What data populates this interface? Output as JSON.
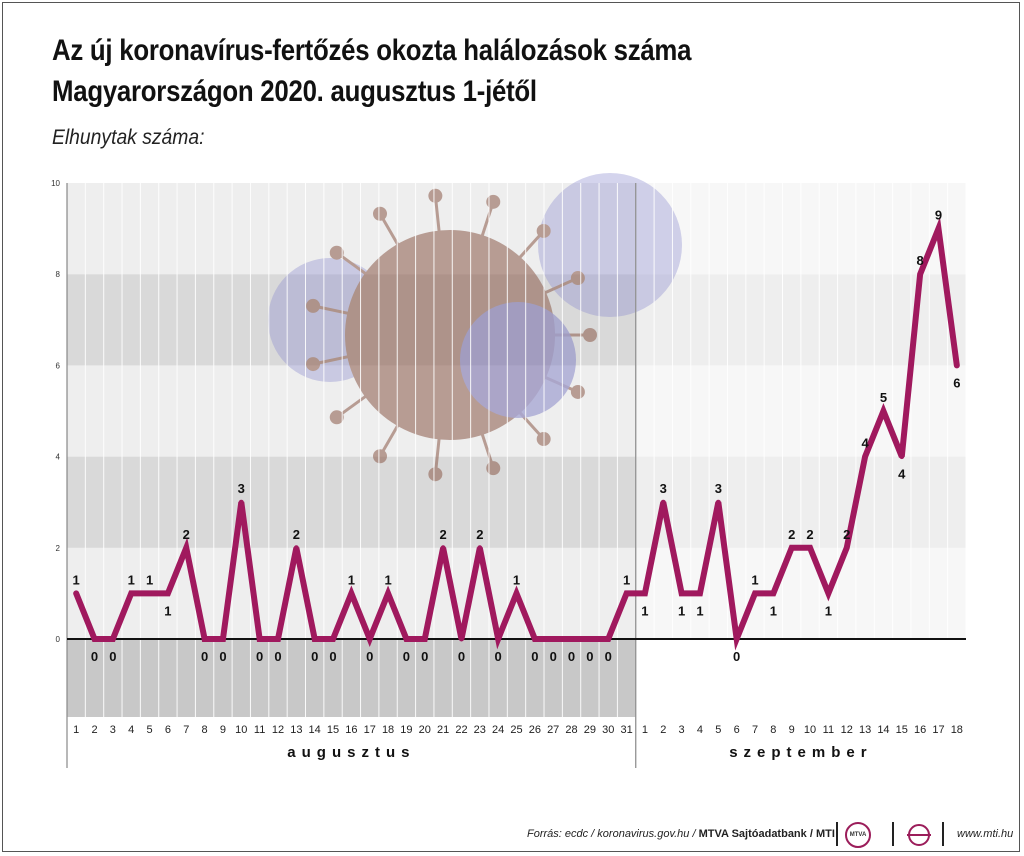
{
  "title_line1": "Az új koronavírus-fertőzés okozta halálozások száma",
  "title_line2": "Magyarországon 2020. augusztus 1-jétől",
  "y_axis_label": "Elhunytak száma:",
  "source": {
    "text": "Forrás: ecdc / koronavirus.gov.hu / ",
    "bold": "MTVA Sajtóadatbank / MTI",
    "url": "www.mti.hu",
    "logo_text": "MTVA"
  },
  "colors": {
    "line": "#a0195e",
    "band_dark": "#d9d9d9",
    "band_light": "#eeeeee",
    "lower_band": "#c8c8c8"
  },
  "chart_data": {
    "type": "line",
    "title": "Az új koronavírus-fertőzés okozta halálozások száma Magyarországon 2020. augusztus 1-jétől",
    "ylabel": "Elhunytak száma:",
    "ylim": [
      -2,
      10
    ],
    "yticks": [
      0,
      2,
      4,
      6,
      8,
      10
    ],
    "months": [
      "augusztus",
      "szeptember"
    ],
    "x": [
      "1",
      "2",
      "3",
      "4",
      "5",
      "6",
      "7",
      "8",
      "9",
      "10",
      "11",
      "12",
      "13",
      "14",
      "15",
      "16",
      "17",
      "18",
      "19",
      "20",
      "21",
      "22",
      "23",
      "24",
      "25",
      "26",
      "27",
      "28",
      "29",
      "30",
      "31",
      "1",
      "2",
      "3",
      "4",
      "5",
      "6",
      "7",
      "8",
      "9",
      "10",
      "11",
      "12",
      "13",
      "14",
      "15",
      "16",
      "17",
      "18"
    ],
    "series": [
      {
        "values": [
          1,
          0,
          0,
          1,
          1,
          1,
          2,
          0,
          0,
          3,
          0,
          0,
          2,
          0,
          0,
          1,
          0,
          1,
          0,
          0,
          2,
          0,
          2,
          0,
          1,
          0,
          0,
          0,
          0,
          0,
          1,
          1,
          3,
          1,
          1,
          3,
          0,
          1,
          1,
          2,
          2,
          1,
          2,
          4,
          5,
          4,
          8,
          9,
          6
        ]
      }
    ]
  }
}
